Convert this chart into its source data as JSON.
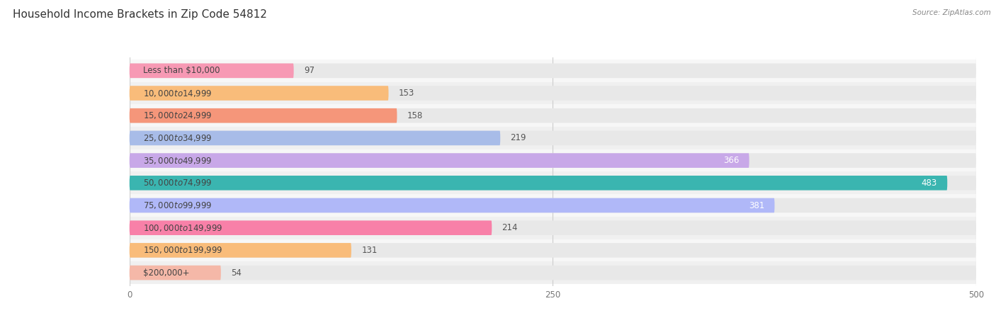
{
  "title": "Household Income Brackets in Zip Code 54812",
  "source": "Source: ZipAtlas.com",
  "categories": [
    "Less than $10,000",
    "$10,000 to $14,999",
    "$15,000 to $24,999",
    "$25,000 to $34,999",
    "$35,000 to $49,999",
    "$50,000 to $74,999",
    "$75,000 to $99,999",
    "$100,000 to $149,999",
    "$150,000 to $199,999",
    "$200,000+"
  ],
  "values": [
    97,
    153,
    158,
    219,
    366,
    483,
    381,
    214,
    131,
    54
  ],
  "bar_colors": [
    "#f799b4",
    "#f9bc7a",
    "#f5967a",
    "#a8bce8",
    "#c8a8e8",
    "#3ab5b0",
    "#b0b8f8",
    "#f880a8",
    "#f9bc7a",
    "#f5b8a8"
  ],
  "bar_bg_color": "#e8e8e8",
  "xlim": [
    0,
    500
  ],
  "xticks": [
    0,
    250,
    500
  ],
  "title_fontsize": 11,
  "label_fontsize": 8.5,
  "value_fontsize": 8.5,
  "background_color": "#ffffff",
  "row_bg_colors": [
    "#f7f7f7",
    "#f0f0f0"
  ]
}
